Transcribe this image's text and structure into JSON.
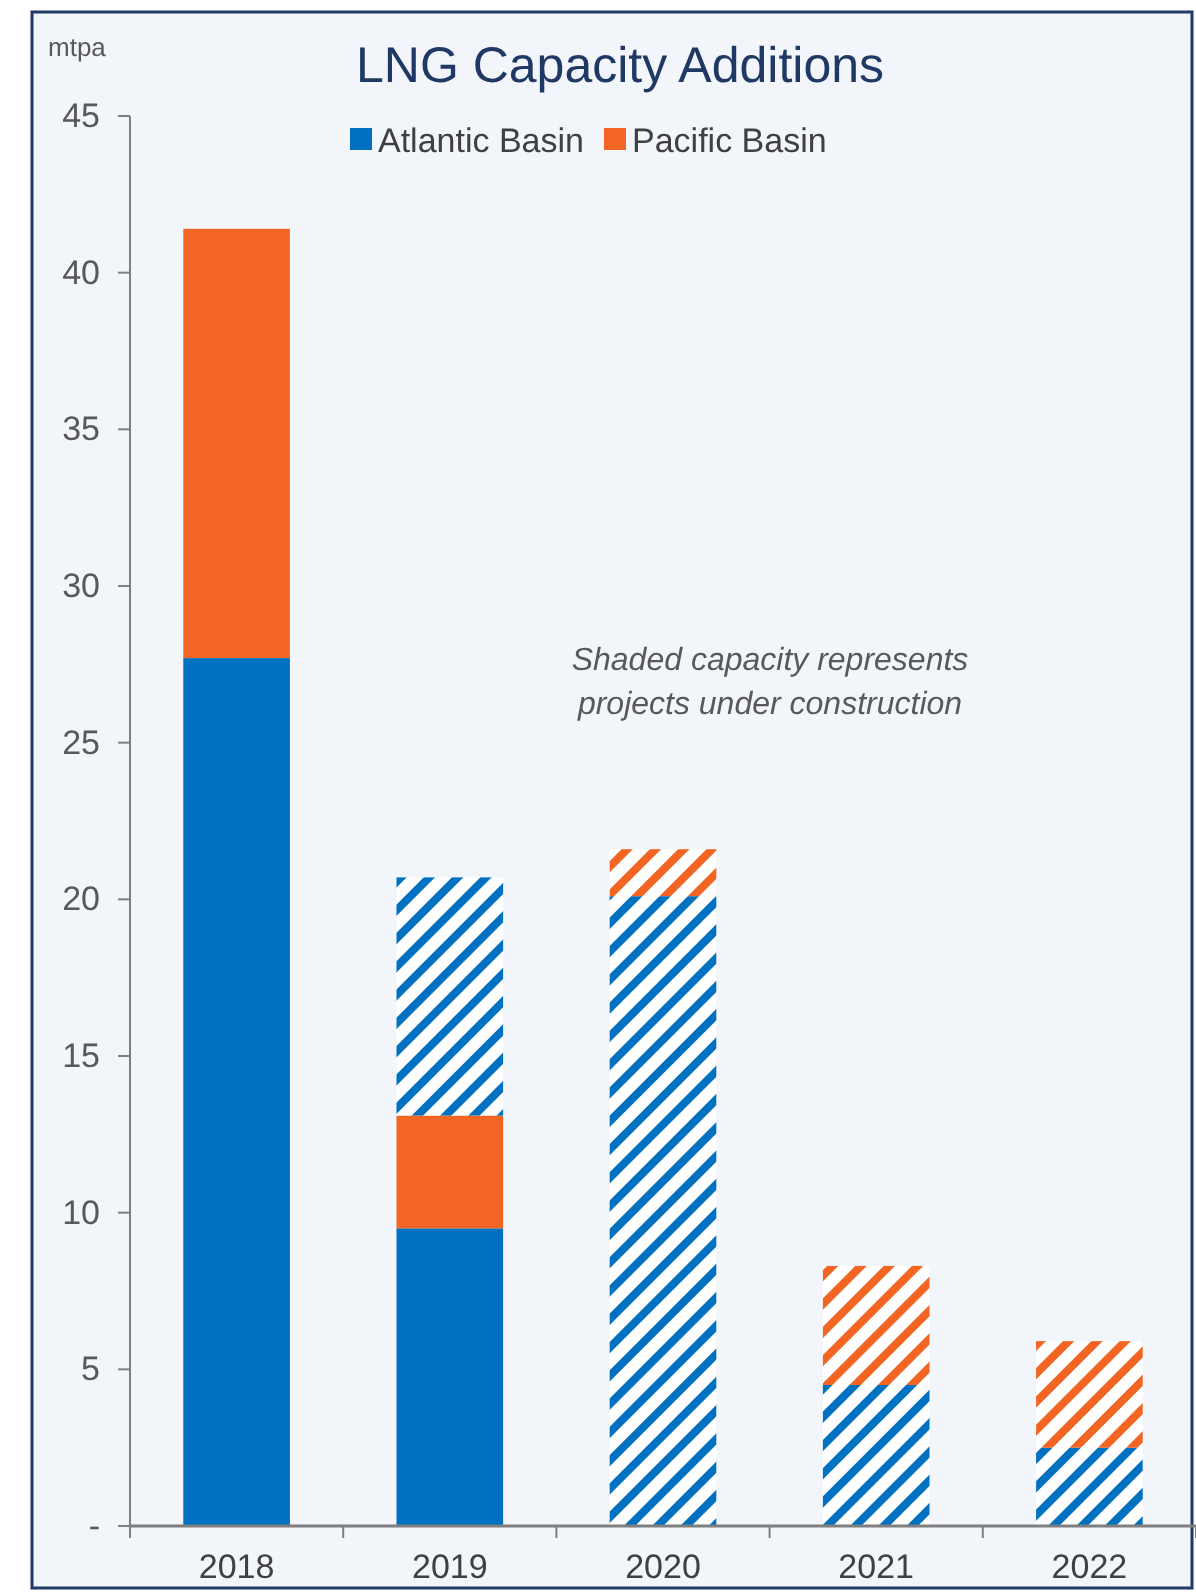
{
  "chart_data": {
    "type": "bar",
    "title": "LNG Capacity Additions",
    "ylabel": "mtpa",
    "categories": [
      "2018",
      "2019",
      "2020",
      "2021",
      "2022"
    ],
    "stacked": true,
    "series": [
      {
        "name": "Atlantic Basin",
        "color": "#0070c0",
        "values": [
          27.7,
          9.5,
          0,
          0,
          0
        ]
      },
      {
        "name": "Pacific Basin",
        "color": "#f26522",
        "values": [
          13.7,
          3.6,
          0,
          0,
          0
        ]
      },
      {
        "color": "#0070c0",
        "values": [
          0,
          7.6,
          20.1,
          4.5,
          2.5
        ]
      },
      {
        "color": "#f26522",
        "values": [
          0,
          0,
          1.5,
          3.8,
          3.4
        ]
      }
    ],
    "ylim": [
      0,
      45
    ],
    "yticks": [
      {
        "value": 0,
        "label": "-"
      },
      5,
      10,
      15,
      20,
      25,
      30,
      35,
      40,
      45
    ],
    "grid": false,
    "legend": "top",
    "annotations": [
      "Shaded capacity represents projects under construction"
    ]
  }
}
